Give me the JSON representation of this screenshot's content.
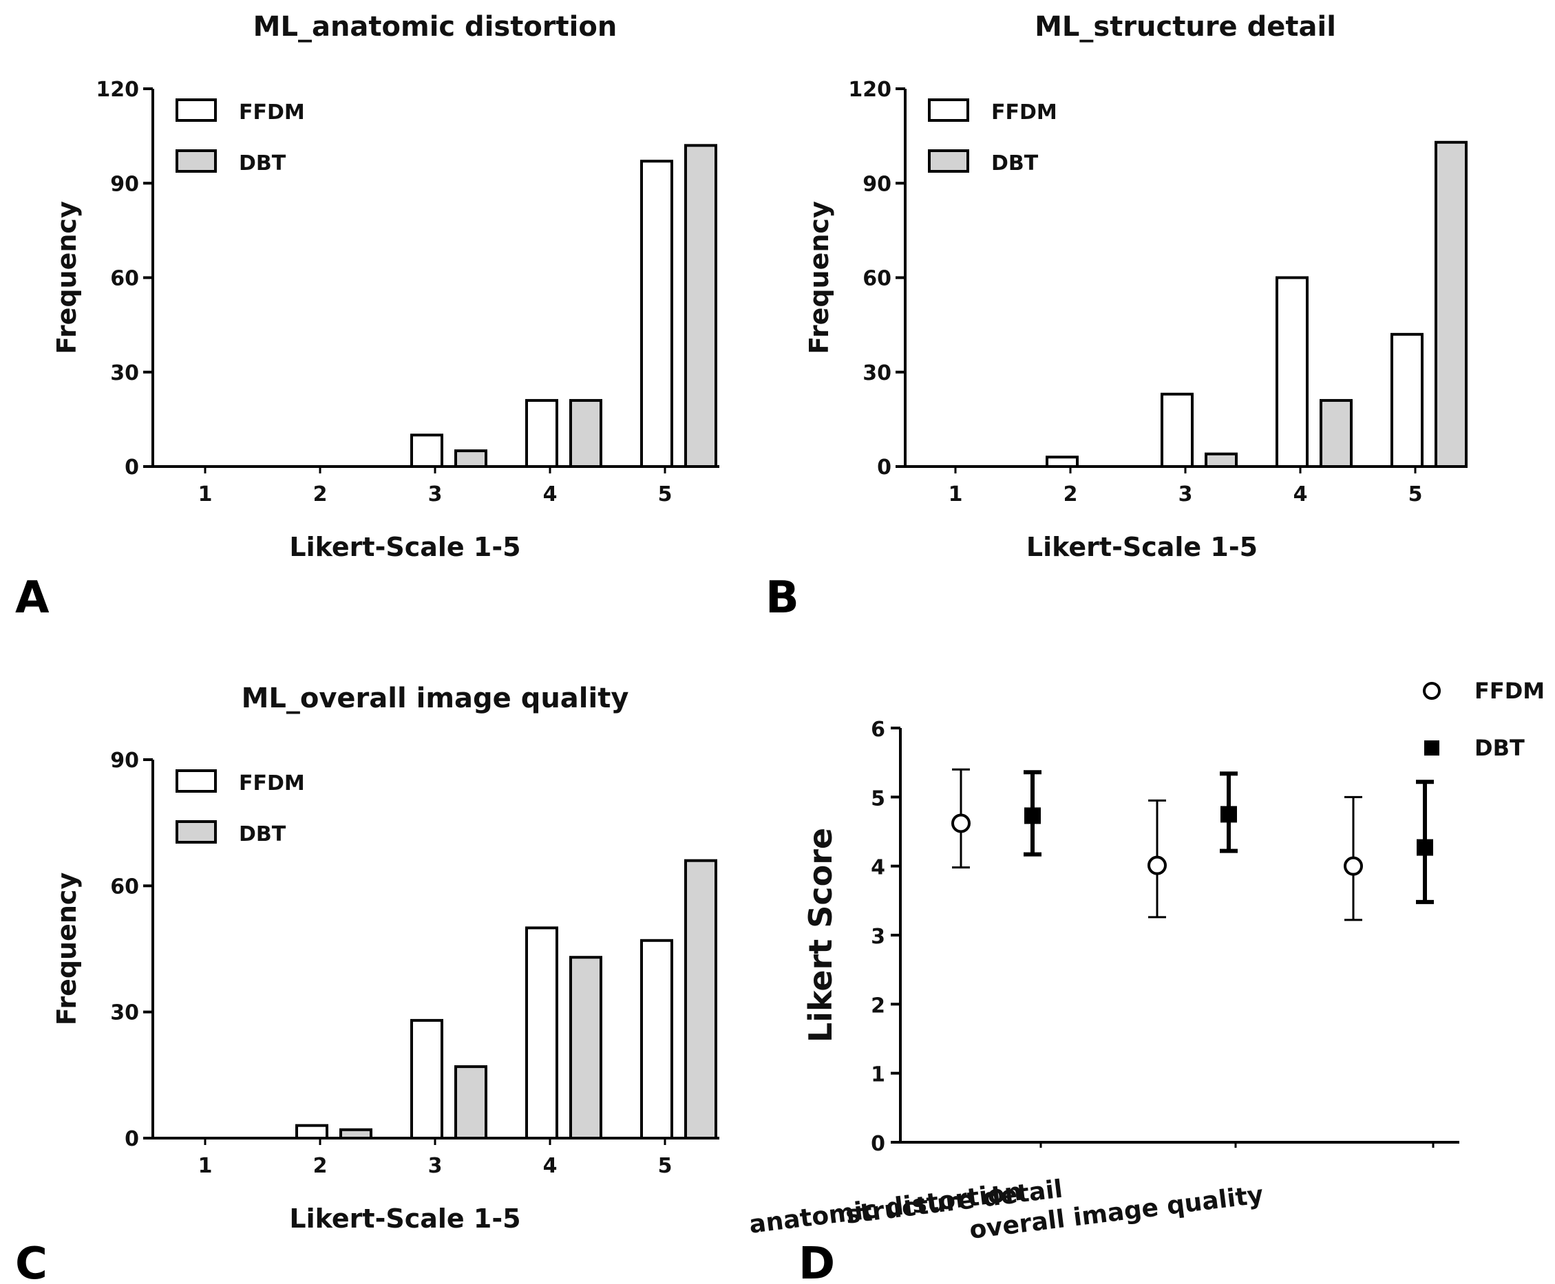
{
  "chart_data": [
    {
      "panel": "A",
      "type": "bar",
      "title": "ML_anatomic distortion",
      "xlabel": "Likert-Scale 1-5",
      "ylabel": "Frequency",
      "categories": [
        "1",
        "2",
        "3",
        "4",
        "5"
      ],
      "ylim": [
        0,
        120
      ],
      "yticks": [
        "0",
        "30",
        "60",
        "90",
        "120"
      ],
      "series": [
        {
          "name": "FFDM",
          "values": [
            0,
            0,
            10,
            21,
            97
          ],
          "color": "#ffffff"
        },
        {
          "name": "DBT",
          "values": [
            0,
            0,
            5,
            21,
            102
          ],
          "color": "#d3d3d3"
        }
      ]
    },
    {
      "panel": "B",
      "type": "bar",
      "title": "ML_structure detail",
      "xlabel": "Likert-Scale 1-5",
      "ylabel": "Frequency",
      "categories": [
        "1",
        "2",
        "3",
        "4",
        "5"
      ],
      "ylim": [
        0,
        120
      ],
      "yticks": [
        "0",
        "30",
        "60",
        "90",
        "120"
      ],
      "series": [
        {
          "name": "FFDM",
          "values": [
            0,
            3,
            23,
            60,
            42
          ],
          "color": "#ffffff"
        },
        {
          "name": "DBT",
          "values": [
            0,
            0,
            4,
            21,
            103
          ],
          "color": "#d3d3d3"
        }
      ]
    },
    {
      "panel": "C",
      "type": "bar",
      "title": "ML_overall image quality",
      "xlabel": "Likert-Scale 1-5",
      "ylabel": "Frequency",
      "categories": [
        "1",
        "2",
        "3",
        "4",
        "5"
      ],
      "ylim": [
        0,
        90
      ],
      "yticks": [
        "0",
        "30",
        "60",
        "90"
      ],
      "series": [
        {
          "name": "FFDM",
          "values": [
            0,
            3,
            28,
            50,
            47
          ],
          "color": "#ffffff"
        },
        {
          "name": "DBT",
          "values": [
            0,
            2,
            17,
            43,
            66
          ],
          "color": "#d3d3d3"
        }
      ]
    },
    {
      "panel": "D",
      "type": "scatter",
      "title": "",
      "xlabel": "",
      "ylabel": "Likert Score",
      "categories": [
        "anatomic distortion",
        "structure detail",
        "overall image quality"
      ],
      "ylim": [
        0,
        6
      ],
      "yticks": [
        "0",
        "1",
        "2",
        "3",
        "4",
        "5",
        "6"
      ],
      "series": [
        {
          "name": "FFDM",
          "marker": "open-circle",
          "values": [
            4.62,
            4.01,
            4.0
          ],
          "err_low": [
            3.98,
            3.26,
            3.22
          ],
          "err_high": [
            5.4,
            4.95,
            5.0
          ]
        },
        {
          "name": "DBT",
          "marker": "filled-square",
          "values": [
            4.73,
            4.75,
            4.27
          ],
          "err_low": [
            4.17,
            4.22,
            3.48
          ],
          "err_high": [
            5.36,
            5.34,
            5.22
          ]
        }
      ]
    }
  ]
}
